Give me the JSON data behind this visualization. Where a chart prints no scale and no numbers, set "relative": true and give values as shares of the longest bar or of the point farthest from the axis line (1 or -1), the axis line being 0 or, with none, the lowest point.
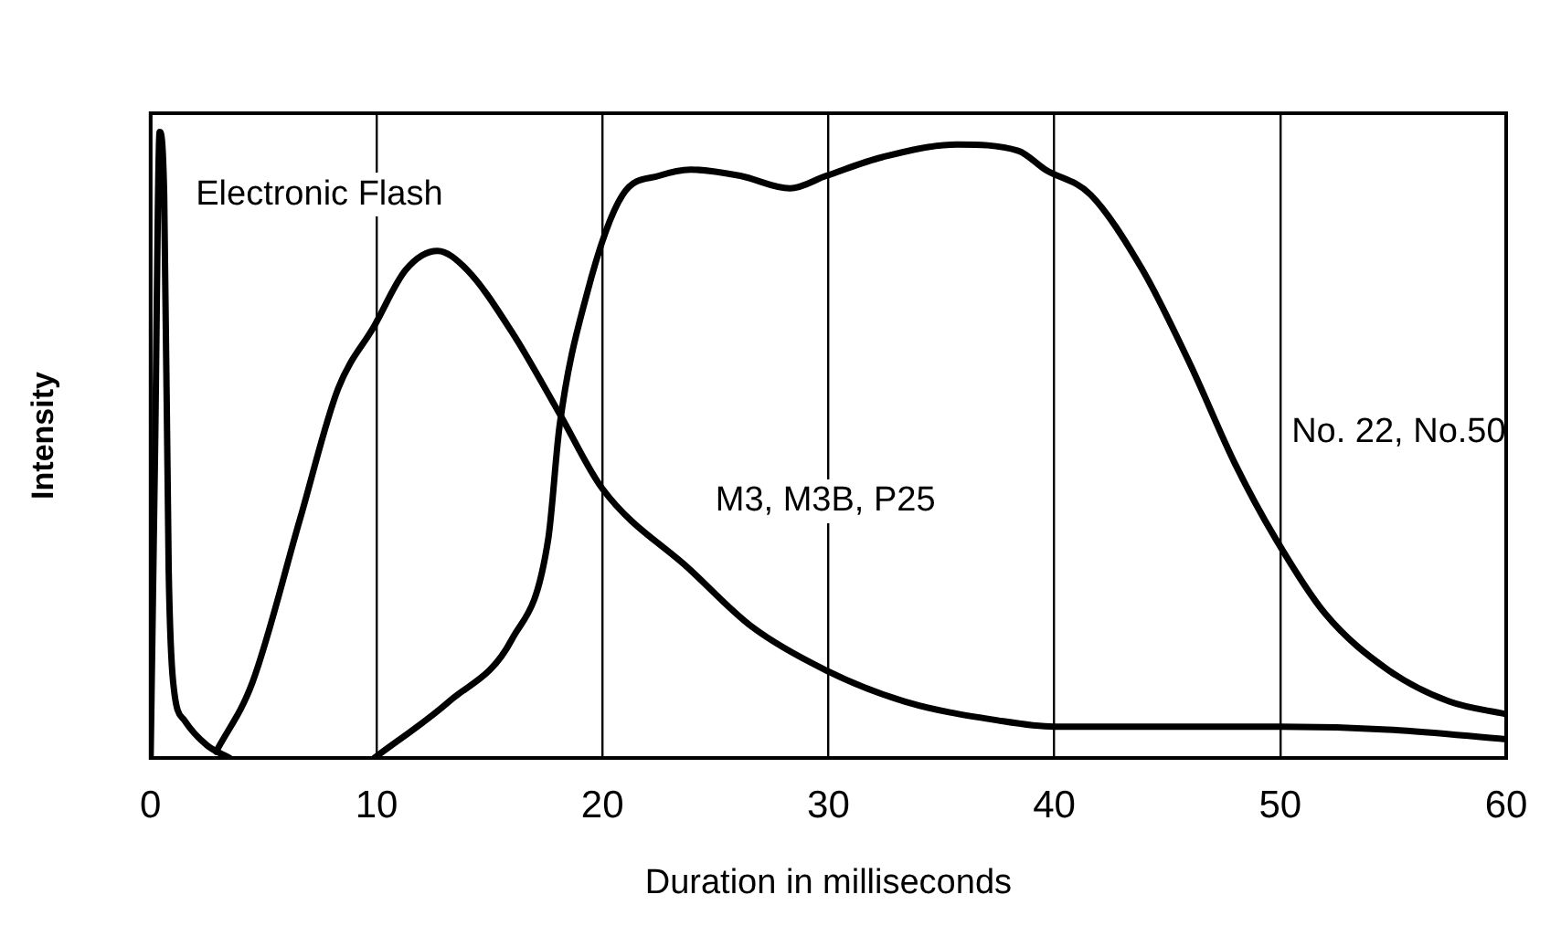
{
  "chart_data": {
    "type": "line",
    "xlabel": "Duration in milliseconds",
    "ylabel": "Intensity",
    "relative": true,
    "xlim": [
      0,
      60
    ],
    "xticks": [
      0,
      10,
      20,
      30,
      40,
      50,
      60
    ],
    "grid": "x",
    "marker": "none",
    "line_style": "solid",
    "series": [
      {
        "name": "Electronic Flash",
        "color": "#000000",
        "x": [
          0,
          0.2,
          0.4,
          0.6,
          0.8,
          1,
          1.5,
          2.5,
          3.5
        ],
        "values": [
          0,
          0.5,
          1,
          0.9,
          0.3,
          0.12,
          0.06,
          0.02,
          0
        ]
      },
      {
        "name": "M3, M3B, P25",
        "color": "#000000",
        "x": [
          2.9,
          4.5,
          6.6,
          8.3,
          9.9,
          11.3,
          12.7,
          14,
          16,
          18.1,
          20,
          23.9,
          26.6,
          29.9,
          33.4,
          37.5,
          40,
          50,
          55,
          60
        ],
        "values": [
          0.01,
          0.12,
          0.38,
          0.59,
          0.69,
          0.78,
          0.81,
          0.78,
          0.68,
          0.55,
          0.43,
          0.3,
          0.21,
          0.14,
          0.09,
          0.06,
          0.05,
          0.05,
          0.045,
          0.03
        ]
      },
      {
        "name": "No. 22, No.50",
        "color": "#000000",
        "x": [
          9.9,
          13.2,
          16,
          17.6,
          18.1,
          19.3,
          20.9,
          22.5,
          23.9,
          26.1,
          28.3,
          29.9,
          32.4,
          35.7,
          38.4,
          39.6,
          41.6,
          43.9,
          46,
          48,
          49.8,
          52,
          54.8,
          57.5,
          60
        ],
        "values": [
          0,
          0.09,
          0.19,
          0.35,
          0.53,
          0.74,
          0.9,
          0.93,
          0.94,
          0.93,
          0.91,
          0.93,
          0.96,
          0.98,
          0.97,
          0.94,
          0.9,
          0.78,
          0.63,
          0.47,
          0.35,
          0.23,
          0.14,
          0.09,
          0.07
        ]
      }
    ]
  }
}
